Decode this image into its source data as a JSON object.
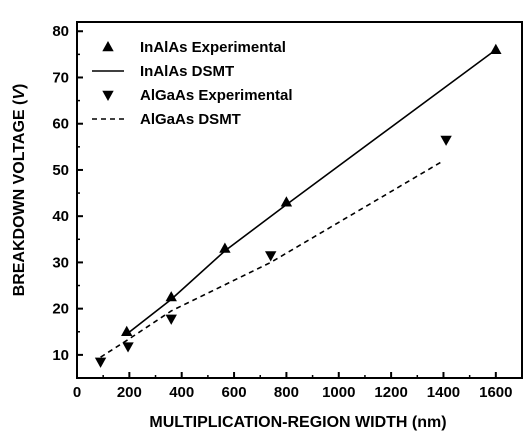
{
  "chart_data": {
    "type": "scatter",
    "xlabel": "MULTIPLICATION-REGION WIDTH (nm)",
    "ylabel_main": "BREAKDOWN VOLTAGE (",
    "ylabel_unit": "V",
    "ylabel_close": ")",
    "xlim": [
      0,
      1700
    ],
    "ylim": [
      5,
      82
    ],
    "xticks": [
      0,
      200,
      400,
      600,
      800,
      1000,
      1200,
      1400,
      1600
    ],
    "yticks": [
      10,
      20,
      30,
      40,
      50,
      60,
      70,
      80
    ],
    "legend_position": "top-left",
    "series": [
      {
        "name": "InAlAs Experimental",
        "kind": "marker",
        "marker": "triangle-up",
        "points": [
          [
            190,
            15
          ],
          [
            360,
            22.5
          ],
          [
            565,
            33
          ],
          [
            800,
            43
          ],
          [
            1600,
            76
          ]
        ]
      },
      {
        "name": "InAlAs DSMT",
        "kind": "line",
        "dash": "solid",
        "points": [
          [
            190,
            14.5
          ],
          [
            360,
            22
          ],
          [
            565,
            32.5
          ],
          [
            800,
            42.5
          ],
          [
            1600,
            76
          ]
        ]
      },
      {
        "name": "AlGaAs Experimental",
        "kind": "marker",
        "marker": "triangle-down",
        "points": [
          [
            90,
            8.5
          ],
          [
            195,
            11.8
          ],
          [
            360,
            17.8
          ],
          [
            740,
            31.5
          ],
          [
            1410,
            56.5
          ]
        ]
      },
      {
        "name": "AlGaAs DSMT",
        "kind": "line",
        "dash": "dashed",
        "points": [
          [
            90,
            9.5
          ],
          [
            195,
            13.3
          ],
          [
            360,
            19.5
          ],
          [
            740,
            30
          ],
          [
            1400,
            52
          ]
        ]
      }
    ]
  }
}
